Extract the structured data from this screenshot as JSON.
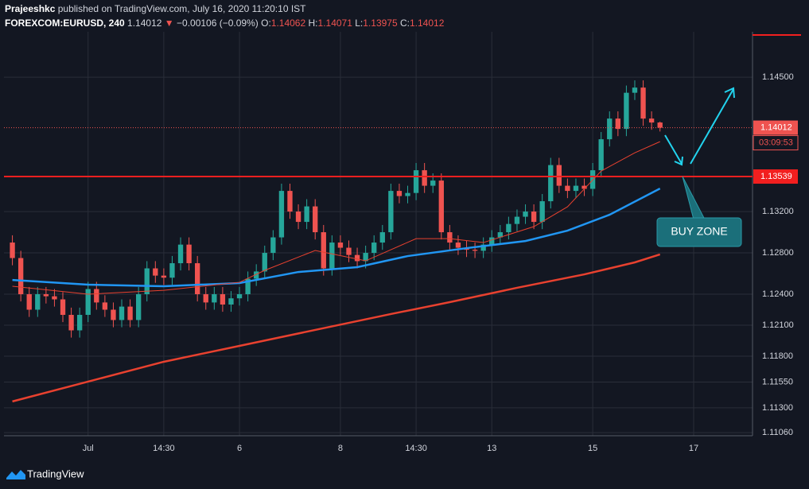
{
  "header": {
    "author": "Prajeeshkc",
    "published": "published on TradingView.com, July 16, 2020 11:20:10 IST",
    "symbol": "FOREXCOM:EURUSD, 240",
    "direction": "▼",
    "change": "−0.00106 (−0.09%)",
    "ohlc_labels": [
      "O:",
      "H:",
      "L:",
      "C:"
    ]
  },
  "footer": {
    "brand": "TradingView"
  },
  "chart_data": {
    "type": "candlestick",
    "up_color": "#26a69a",
    "down_color": "#ef5350",
    "categories": [
      null,
      null,
      null,
      null,
      null,
      null,
      null,
      null,
      null,
      null,
      null,
      null,
      null,
      null,
      null,
      null,
      null,
      null,
      null,
      null,
      null,
      null,
      null,
      null,
      null,
      null,
      null,
      null,
      null,
      null,
      null,
      null,
      null,
      null,
      null,
      null,
      null,
      null,
      null,
      null,
      null,
      null,
      null,
      null,
      null,
      null,
      null,
      null,
      null,
      null,
      null,
      null,
      null,
      null,
      null,
      null,
      null,
      null,
      null,
      null,
      null,
      null,
      null,
      null,
      null,
      null,
      null,
      null,
      null,
      null,
      null,
      null,
      null,
      null,
      null,
      null,
      null,
      null
    ],
    "open": [
      1.129,
      1.1275,
      1.124,
      1.1225,
      1.124,
      1.1238,
      1.1235,
      1.122,
      1.1205,
      1.122,
      1.1245,
      1.1232,
      1.1225,
      1.1215,
      1.1228,
      1.1215,
      1.124,
      1.1265,
      1.1258,
      1.1256,
      1.127,
      1.1288,
      1.127,
      1.124,
      1.1232,
      1.124,
      1.123,
      1.1236,
      1.124,
      1.1255,
      1.1262,
      1.128,
      1.1295,
      1.134,
      1.132,
      1.131,
      1.1325,
      1.13,
      1.1265,
      1.129,
      1.1285,
      1.1278,
      1.1272,
      1.128,
      1.129,
      1.13,
      1.134,
      1.1335,
      1.1338,
      1.136,
      1.1345,
      1.135,
      1.13,
      1.129,
      1.1285,
      1.1283,
      1.1282,
      1.1288,
      1.1295,
      1.13,
      1.1308,
      1.1315,
      1.132,
      1.131,
      1.133,
      1.1365,
      1.1345,
      1.134,
      1.1345,
      1.1342,
      1.136,
      1.139,
      1.141,
      1.14,
      1.1435,
      1.144,
      1.141,
      1.14062
    ],
    "high": [
      1.1297,
      1.1282,
      1.1247,
      1.1247,
      1.1247,
      1.1245,
      1.1242,
      1.1227,
      1.1227,
      1.1252,
      1.1252,
      1.1239,
      1.1232,
      1.1235,
      1.1235,
      1.1247,
      1.1272,
      1.1272,
      1.1265,
      1.1277,
      1.1295,
      1.1295,
      1.1277,
      1.1247,
      1.1247,
      1.1247,
      1.1243,
      1.1247,
      1.1262,
      1.1269,
      1.1287,
      1.1302,
      1.1347,
      1.1347,
      1.1327,
      1.1332,
      1.1332,
      1.1307,
      1.1297,
      1.1297,
      1.1292,
      1.1285,
      1.1287,
      1.1297,
      1.1307,
      1.1347,
      1.1347,
      1.1345,
      1.1367,
      1.1367,
      1.1357,
      1.1357,
      1.1307,
      1.1297,
      1.1292,
      1.129,
      1.1295,
      1.1302,
      1.1307,
      1.1315,
      1.1322,
      1.1327,
      1.1327,
      1.1337,
      1.1372,
      1.1372,
      1.1352,
      1.1352,
      1.1352,
      1.1367,
      1.1397,
      1.1417,
      1.1417,
      1.1442,
      1.1447,
      1.1447,
      1.1417,
      1.14071
    ],
    "low": [
      1.1268,
      1.1233,
      1.1218,
      1.1218,
      1.1231,
      1.1228,
      1.1213,
      1.1198,
      1.1198,
      1.1213,
      1.1225,
      1.1218,
      1.1208,
      1.1208,
      1.1208,
      1.1208,
      1.1233,
      1.1251,
      1.1249,
      1.1249,
      1.1263,
      1.1263,
      1.1233,
      1.1225,
      1.1225,
      1.1223,
      1.1223,
      1.1229,
      1.1233,
      1.1248,
      1.1255,
      1.1273,
      1.1288,
      1.1313,
      1.1303,
      1.1303,
      1.1293,
      1.1258,
      1.1258,
      1.1278,
      1.1271,
      1.1265,
      1.1265,
      1.1273,
      1.1283,
      1.1293,
      1.1328,
      1.1328,
      1.1331,
      1.1338,
      1.1338,
      1.1293,
      1.1283,
      1.1278,
      1.1276,
      1.1275,
      1.1275,
      1.1281,
      1.1288,
      1.1293,
      1.1301,
      1.1308,
      1.1303,
      1.1303,
      1.1323,
      1.1338,
      1.1333,
      1.1333,
      1.1335,
      1.1335,
      1.1353,
      1.1383,
      1.1393,
      1.1393,
      1.1428,
      1.1403,
      1.13992,
      1.13975
    ],
    "close": [
      1.1275,
      1.124,
      1.1225,
      1.124,
      1.1238,
      1.1235,
      1.122,
      1.1205,
      1.122,
      1.1245,
      1.1232,
      1.1225,
      1.1215,
      1.1228,
      1.1215,
      1.124,
      1.1265,
      1.1258,
      1.1256,
      1.127,
      1.1288,
      1.127,
      1.124,
      1.1232,
      1.124,
      1.123,
      1.1236,
      1.124,
      1.1255,
      1.1262,
      1.128,
      1.1295,
      1.134,
      1.132,
      1.131,
      1.1325,
      1.13,
      1.1265,
      1.129,
      1.1285,
      1.1278,
      1.1272,
      1.128,
      1.129,
      1.13,
      1.134,
      1.1335,
      1.1338,
      1.136,
      1.1345,
      1.135,
      1.13,
      1.129,
      1.1285,
      1.1283,
      1.1282,
      1.1288,
      1.1295,
      1.13,
      1.1308,
      1.1315,
      1.132,
      1.131,
      1.133,
      1.1365,
      1.1345,
      1.134,
      1.1345,
      1.1342,
      1.136,
      1.139,
      1.141,
      1.14,
      1.1435,
      1.144,
      1.141,
      1.14062,
      1.14012
    ],
    "lines": [
      {
        "color": "#e8412f",
        "width": 2.5,
        "x": [
          0,
          9,
          18,
          27,
          36,
          45,
          52,
          60,
          68,
          74,
          77
        ],
        "values": [
          1.11362,
          1.11554,
          1.11746,
          1.119,
          1.12054,
          1.12208,
          1.12323,
          1.12462,
          1.12592,
          1.12708,
          1.12785
        ]
      },
      {
        "color": "#2196f3",
        "width": 2.5,
        "x": [
          0,
          9,
          18,
          27,
          34,
          41,
          47,
          54,
          61,
          66,
          71,
          77
        ],
        "values": [
          1.12538,
          1.12492,
          1.12477,
          1.12508,
          1.12615,
          1.12662,
          1.12769,
          1.12846,
          1.12915,
          1.13015,
          1.13169,
          1.13423
        ]
      },
      {
        "color": "#e8412f",
        "width": 1,
        "x": [
          0,
          9,
          18,
          27,
          30,
          36,
          42,
          48,
          52,
          56,
          62,
          66,
          70,
          74,
          77
        ],
        "values": [
          1.12477,
          1.124,
          1.12438,
          1.12515,
          1.12631,
          1.12823,
          1.12723,
          1.12938,
          1.12938,
          1.129,
          1.13054,
          1.13246,
          1.13592,
          1.13769,
          1.13877
        ]
      }
    ],
    "level": 1.13539,
    "level_color": "#f21f1f",
    "countdown": "03:09:53",
    "annotation": "BUY ZONE",
    "xlim": [
      -1,
      88
    ],
    "xticks": [
      {
        "value": 9,
        "label": "Jul"
      },
      {
        "value": 18,
        "label": "14:30"
      },
      {
        "value": 27,
        "label": "6"
      },
      {
        "value": 39,
        "label": "8"
      },
      {
        "value": 48,
        "label": "14:30"
      },
      {
        "value": 57,
        "label": "13"
      },
      {
        "value": 69,
        "label": "15"
      },
      {
        "value": 81,
        "label": "17"
      }
    ],
    "ylim": [
      1.1103,
      1.1494
    ],
    "yticks": [
      {
        "value": 1.1106,
        "label": "1.11060"
      },
      {
        "value": 1.113,
        "label": "1.11300"
      },
      {
        "value": 1.1155,
        "label": "1.11550"
      },
      {
        "value": 1.118,
        "label": "1.11800"
      },
      {
        "value": 1.121,
        "label": "1.12100"
      },
      {
        "value": 1.124,
        "label": "1.12400"
      },
      {
        "value": 1.128,
        "label": "1.12800"
      },
      {
        "value": 1.132,
        "label": "1.13200"
      },
      {
        "value": 1.145,
        "label": "1.14500"
      }
    ],
    "grid": true
  }
}
